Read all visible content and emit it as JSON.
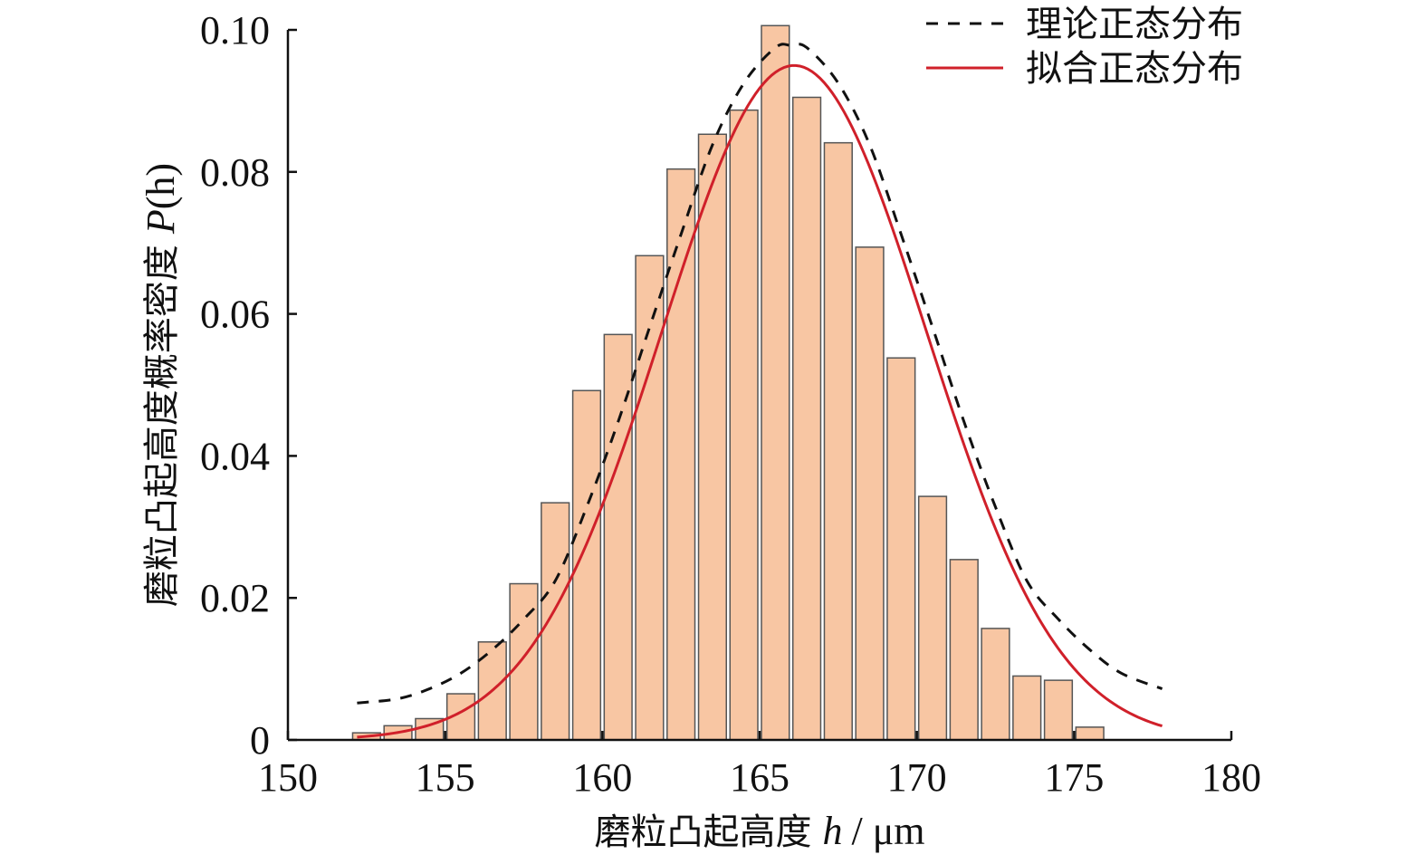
{
  "chart_data": {
    "type": "bar",
    "xlim": [
      150,
      180
    ],
    "ylim": [
      0,
      0.1
    ],
    "x_ticks": [
      "150",
      "155",
      "160",
      "165",
      "170",
      "175",
      "180"
    ],
    "y_ticks": [
      "0",
      "0.02",
      "0.04",
      "0.06",
      "0.08",
      "0.10"
    ],
    "xlabel": {
      "text": "磨粒凸起高度",
      "var": "h",
      "unit": "/ μm"
    },
    "ylabel": {
      "text": "磨粒凸起高度概率密度",
      "var": "P",
      "arg": "(h)"
    },
    "legend": {
      "placement": "top-right",
      "items": [
        {
          "label": "理论正态分布",
          "style": "dashed",
          "color": "#111111"
        },
        {
          "label": "拟合正态分布",
          "style": "solid",
          "color": "#d0202a"
        }
      ]
    },
    "bars": {
      "x": [
        152.5,
        153.5,
        154.5,
        155.5,
        156.5,
        157.5,
        158.5,
        159.5,
        160.5,
        161.5,
        162.5,
        163.5,
        164.5,
        165.5,
        166.5,
        167.5,
        168.5,
        169.5,
        170.5,
        171.5,
        172.5,
        173.5,
        174.5,
        175.5,
        176.5,
        177.5
      ],
      "values": [
        0.001,
        0.002,
        0.003,
        0.0065,
        0.0138,
        0.022,
        0.0334,
        0.0492,
        0.0571,
        0.0682,
        0.0804,
        0.0853,
        0.0887,
        0.1006,
        0.0905,
        0.0841,
        0.0694,
        0.0538,
        0.0343,
        0.0254,
        0.0157,
        0.009,
        0.0084,
        0.0018,
        0,
        0
      ],
      "fill": "#f8c6a3",
      "edge": "#555555"
    },
    "series": [
      {
        "name": "理论正态分布",
        "style": "dashed",
        "color": "#111111",
        "x": [
          152.2,
          153.5,
          154.5,
          155.5,
          156.5,
          157.5,
          158.5,
          159.5,
          160.5,
          161.5,
          162.5,
          163.5,
          164.5,
          165.5,
          166.0,
          166.5,
          167.5,
          168.5,
          169.5,
          170.5,
          171.5,
          172.5,
          173.5,
          174.5,
          175.5,
          176.5,
          177.8
        ],
        "values": [
          0.0052,
          0.0058,
          0.0072,
          0.0094,
          0.0127,
          0.017,
          0.0224,
          0.0328,
          0.0448,
          0.0581,
          0.0712,
          0.0838,
          0.0925,
          0.0975,
          0.0978,
          0.0975,
          0.0925,
          0.0838,
          0.0712,
          0.0581,
          0.0448,
          0.0328,
          0.0224,
          0.017,
          0.0127,
          0.0094,
          0.0072
        ]
      },
      {
        "name": "拟合正态分布",
        "style": "solid",
        "color": "#d0202a",
        "mean": 166.1,
        "sd": 4.2,
        "x_range": [
          152.2,
          177.8
        ]
      }
    ]
  }
}
